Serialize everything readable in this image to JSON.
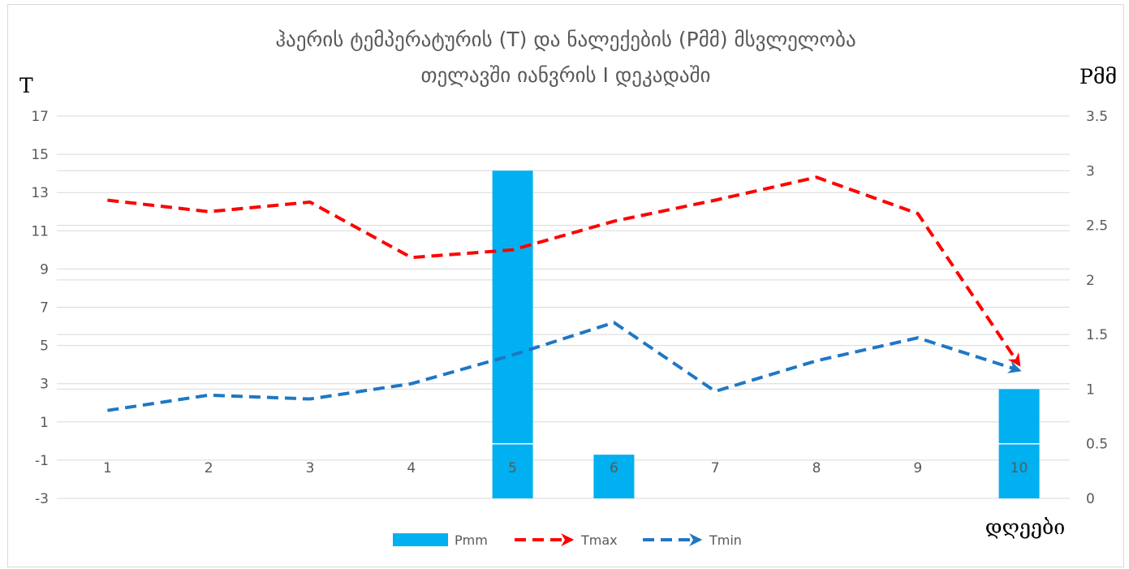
{
  "chart_data": {
    "type": "bar+line",
    "title_line1": "ჰაერის ტემპერატურის (T) და ნალექების (Pმმ) მსვლელობა",
    "title_line2": "თელავში იანვრის I დეკადაში",
    "ylabel": "T",
    "y2label": "Pმმ",
    "xlabel": "დღეები",
    "categories": [
      "1",
      "2",
      "3",
      "4",
      "5",
      "6",
      "7",
      "8",
      "9",
      "10"
    ],
    "ylim": [
      -3,
      17
    ],
    "yticks": [
      "-3",
      "-1",
      "1",
      "3",
      "5",
      "7",
      "9",
      "11",
      "13",
      "15",
      "17"
    ],
    "y2lim": [
      0,
      3.5
    ],
    "y2ticks": [
      "0",
      "0.5",
      "1",
      "1.5",
      "2",
      "2.5",
      "3",
      "3.5"
    ],
    "grid": true,
    "legend_position": "bottom",
    "series": [
      {
        "name": "Pmm",
        "kind": "bar",
        "axis": "right",
        "color": "#00b0f0",
        "values": [
          0,
          0,
          0,
          0,
          3.0,
          0.4,
          0,
          0,
          0,
          1.0
        ]
      },
      {
        "name": "Tmax",
        "kind": "line",
        "axis": "left",
        "color": "#ff0000",
        "values": [
          12.6,
          12.0,
          12.5,
          9.6,
          10.0,
          11.5,
          12.6,
          13.8,
          11.9,
          4.0
        ]
      },
      {
        "name": "Tmin",
        "kind": "line",
        "axis": "left",
        "color": "#1f77c4",
        "values": [
          1.6,
          2.4,
          2.2,
          3.0,
          4.5,
          6.2,
          2.6,
          4.2,
          5.4,
          3.7
        ]
      }
    ]
  }
}
